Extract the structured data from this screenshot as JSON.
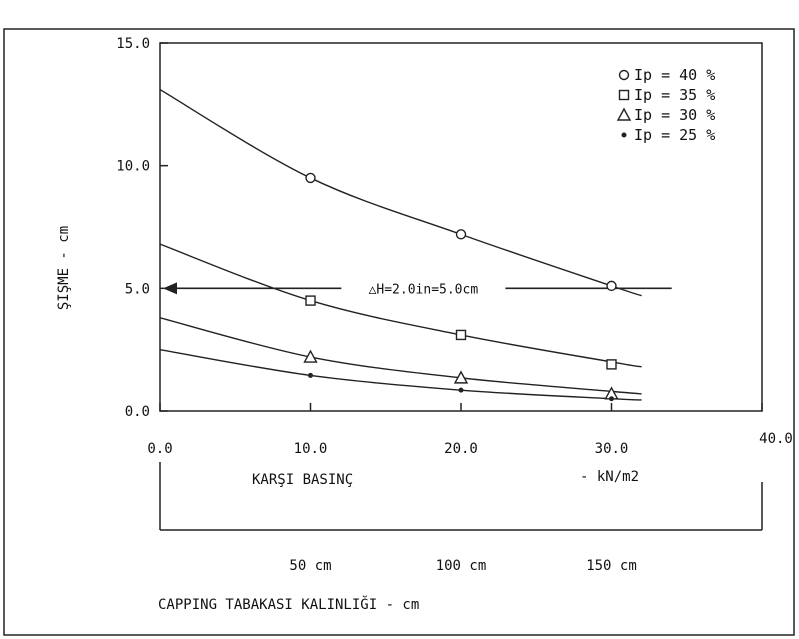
{
  "chart_data": {
    "type": "line",
    "title": "",
    "xlabel": "KARŞI BASINÇ",
    "x_unit_label": "- kN/m2",
    "ylabel": "ŞIŞME - cm",
    "xlim": [
      0,
      40
    ],
    "ylim": [
      0,
      15
    ],
    "x_ticks": [
      "0.0",
      "10.0",
      "20.0",
      "30.0",
      "40.0"
    ],
    "y_ticks": [
      "0.0",
      "5.0",
      "10.0",
      "15.0"
    ],
    "grid": false,
    "legend_position": "top-right",
    "series": [
      {
        "name": "Ip = 40 %",
        "marker": "circle",
        "symbol": "○",
        "curve": [
          [
            0,
            13.1
          ],
          [
            10,
            9.5
          ],
          [
            20,
            7.2
          ],
          [
            30,
            5.1
          ],
          [
            32,
            4.7
          ]
        ],
        "points": [
          [
            10,
            9.5
          ],
          [
            20,
            7.2
          ],
          [
            30,
            5.1
          ]
        ]
      },
      {
        "name": "Ip = 35 %",
        "marker": "square",
        "symbol": "□",
        "curve": [
          [
            0,
            6.8
          ],
          [
            10,
            4.5
          ],
          [
            20,
            3.1
          ],
          [
            30,
            2.0
          ],
          [
            32,
            1.8
          ]
        ],
        "points": [
          [
            10,
            4.5
          ],
          [
            20,
            3.1
          ],
          [
            30,
            1.9
          ]
        ]
      },
      {
        "name": "Ip = 30 %",
        "marker": "triangle",
        "symbol": "△",
        "curve": [
          [
            0,
            3.8
          ],
          [
            10,
            2.2
          ],
          [
            20,
            1.35
          ],
          [
            30,
            0.8
          ],
          [
            32,
            0.7
          ]
        ],
        "points": [
          [
            10,
            2.2
          ],
          [
            20,
            1.35
          ],
          [
            30,
            0.7
          ]
        ]
      },
      {
        "name": "Ip = 25 %",
        "marker": "dot",
        "symbol": "•",
        "curve": [
          [
            0,
            2.5
          ],
          [
            10,
            1.45
          ],
          [
            20,
            0.85
          ],
          [
            30,
            0.5
          ],
          [
            32,
            0.45
          ]
        ],
        "points": [
          [
            10,
            1.45
          ],
          [
            20,
            0.85
          ],
          [
            30,
            0.5
          ]
        ]
      }
    ],
    "reference_line": {
      "y": 5.0,
      "x_from": 0,
      "x_to": 34,
      "label": "△H=2.0in=5.0cm",
      "label_x": 17.5
    },
    "secondary_axis": {
      "label": "CAPPING TABAKASI KALINLIĞI - cm",
      "ticks": [
        {
          "x": 10,
          "label": "50 cm"
        },
        {
          "x": 20,
          "label": "100 cm"
        },
        {
          "x": 30,
          "label": "150 cm"
        }
      ]
    }
  }
}
